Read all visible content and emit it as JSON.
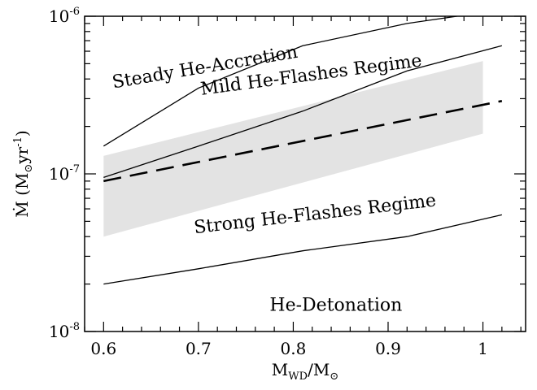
{
  "chart_data": {
    "type": "line",
    "title": "",
    "xlabel": {
      "main": "M",
      "sub": "WD",
      "after": "/M",
      "sun_sub": "⊙"
    },
    "ylabel": {
      "main": "Ṁ",
      "open": " (M",
      "sun_sub": "⊙",
      "unit": "yr",
      "sup": "-1",
      "close": ")"
    },
    "xlim": [
      0.58,
      1.045
    ],
    "ylim": [
      1e-08,
      1e-06
    ],
    "yscale": "log",
    "x_ticks": [
      {
        "value": 0.6,
        "label": "0.6"
      },
      {
        "value": 0.7,
        "label": "0.7"
      },
      {
        "value": 0.8,
        "label": "0.8"
      },
      {
        "value": 0.9,
        "label": "0.9"
      },
      {
        "value": 1.0,
        "label": "1"
      }
    ],
    "y_ticks": [
      {
        "value": 1e-08,
        "mant": "10",
        "exp": "-8"
      },
      {
        "value": 1e-07,
        "mant": "10",
        "exp": "-7"
      },
      {
        "value": 1e-06,
        "mant": "10",
        "exp": "-6"
      }
    ],
    "shaded_band": {
      "color": "#e3e3e3",
      "x": [
        0.6,
        1.0
      ],
      "upper": [
        1.3e-07,
        5.2e-07
      ],
      "lower": [
        4e-08,
        1.8e-07
      ]
    },
    "series": [
      {
        "style": "solid",
        "x": [
          0.6,
          0.7,
          0.81,
          0.92,
          1.02
        ],
        "y": [
          1.5e-07,
          3.5e-07,
          6.5e-07,
          9e-07,
          1.1e-06
        ]
      },
      {
        "style": "solid",
        "x": [
          0.6,
          0.7,
          0.81,
          0.92,
          1.02
        ],
        "y": [
          9.5e-08,
          1.5e-07,
          2.5e-07,
          4.5e-07,
          6.5e-07
        ]
      },
      {
        "style": "dashed",
        "x": [
          0.6,
          1.02
        ],
        "y": [
          9e-08,
          2.9e-07
        ]
      },
      {
        "style": "solid",
        "x": [
          0.6,
          0.7,
          0.81,
          0.92,
          1.02
        ],
        "y": [
          2e-08,
          2.5e-08,
          3.25e-08,
          4e-08,
          5.5e-08
        ]
      }
    ],
    "annotations": [
      {
        "text": "Steady He-Accretion",
        "x": 0.707,
        "y": 4.7e-07,
        "angle": -9.5
      },
      {
        "text": "Mild He-Flashes Regime",
        "x": 0.819,
        "y": 4.2e-07,
        "angle": -7.5
      },
      {
        "text": "Strong He-Flashes Regime",
        "x": 0.823,
        "y": 5.5e-08,
        "angle": -6.5
      },
      {
        "text": "He-Detonation",
        "x": 0.845,
        "y": 1.45e-08,
        "angle": 0
      }
    ]
  }
}
